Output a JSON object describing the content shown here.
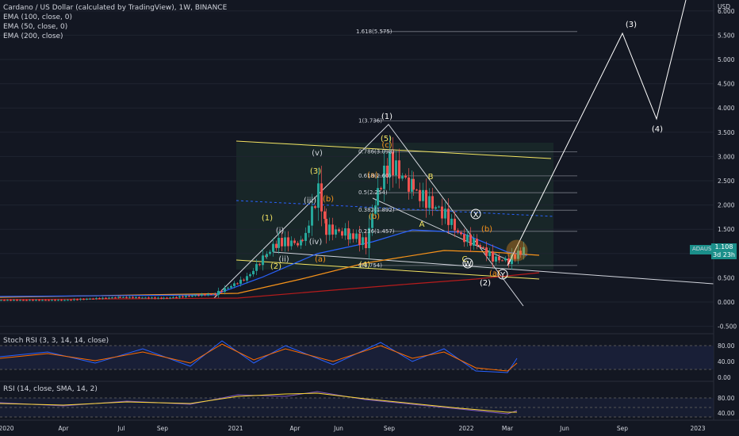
{
  "header": {
    "title": "Cardano / US Dollar (calculated by TradingView), 1W, BINANCE",
    "indicators": [
      "EMA (100, close, 0)",
      "EMA (50, close, 0)",
      "EMA (200, close)"
    ]
  },
  "price_axis": {
    "unit": "USD",
    "ticks": [
      "6.000",
      "5.500",
      "5.000",
      "4.500",
      "4.000",
      "3.500",
      "3.000",
      "2.500",
      "2.000",
      "1.500",
      "1.000",
      "0.500",
      "0.000",
      "-0.500"
    ]
  },
  "time_axis": {
    "ticks": [
      "2020",
      "Apr",
      "Jul",
      "Sep",
      "2021",
      "Apr",
      "Jun",
      "Sep",
      "2022",
      "Mar",
      "Jun",
      "Sep",
      "2023"
    ]
  },
  "current_price": {
    "symbol": "ADAUSD",
    "value": "1.108",
    "countdown": "3d 23h"
  },
  "fib_labels": [
    "1.618(5.575)",
    "1(3.736)",
    "0.786(3.098)",
    "0.618(2.60)",
    "0.5(2.254)",
    "0.382(1.892)",
    "0.236(1.457)",
    "0(0.754)"
  ],
  "wave_labels": {
    "impulse_main": [
      "(1)",
      "(2)",
      "(3)",
      "(4)"
    ],
    "impulse_sub": [
      "(1)",
      "(2)",
      "(3)",
      "(4)",
      "(5)"
    ],
    "minor": [
      "(i)",
      "(ii)",
      "(iii)",
      "(iv)",
      "(v)"
    ],
    "abc": [
      "(a)",
      "(b)",
      "(c)",
      "A",
      "B",
      "C"
    ],
    "wxy": [
      "W",
      "X",
      "Y",
      "(a)",
      "(b)"
    ]
  },
  "stoch_pane": {
    "title": "Stoch RSI (3, 3, 14, 14, close)",
    "ticks": [
      "80.00",
      "40.00",
      "0.00"
    ]
  },
  "rsi_pane": {
    "title": "RSI (14, close, SMA, 14, 2)",
    "ticks": [
      "80.00",
      "40.00"
    ]
  },
  "colors": {
    "background": "#131722",
    "up": "#26a69a",
    "down": "#ef5350",
    "ema100": "#f7931a",
    "ema50": "#2962ff",
    "ema200": "#b71c1c",
    "channel": "#f5e663",
    "white": "#ffffff",
    "stoch_k": "#2962ff",
    "stoch_d": "#ff6d00",
    "rsi": "#7e57c2",
    "rsi_ma": "#fdd835"
  },
  "chart_data": {
    "type": "candlestick",
    "interval": "1W",
    "series_close_approx": [
      {
        "date": "2020-01",
        "value": 0.04
      },
      {
        "date": "2020-04",
        "value": 0.04
      },
      {
        "date": "2020-07",
        "value": 0.13
      },
      {
        "date": "2020-09",
        "value": 0.1
      },
      {
        "date": "2020-12",
        "value": 0.18
      },
      {
        "date": "2021-02",
        "value": 0.9
      },
      {
        "date": "2021-03",
        "value": 1.2
      },
      {
        "date": "2021-05",
        "value": 2.3
      },
      {
        "date": "2021-06",
        "value": 1.4
      },
      {
        "date": "2021-07",
        "value": 1.2
      },
      {
        "date": "2021-09",
        "value": 2.9
      },
      {
        "date": "2021-11",
        "value": 2.0
      },
      {
        "date": "2022-01",
        "value": 1.3
      },
      {
        "date": "2022-02",
        "value": 0.85
      },
      {
        "date": "2022-03",
        "value": 1.108
      }
    ],
    "projection": [
      {
        "date": "2022-03",
        "value": 0.76
      },
      {
        "date": "2022-09",
        "value": 5.5
      },
      {
        "date": "2022-11",
        "value": 3.8
      },
      {
        "date": "2023-03",
        "value": 6.3
      }
    ],
    "ylim": [
      -0.5,
      6.2
    ]
  }
}
